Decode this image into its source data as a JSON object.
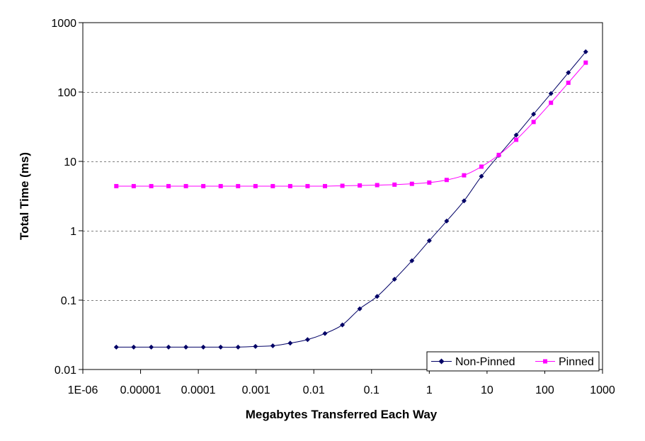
{
  "chart_data": {
    "type": "line",
    "title": "",
    "xlabel": "Megabytes Transferred Each Way",
    "ylabel": "Total Time (ms)",
    "xscale": "log",
    "yscale": "log",
    "xlim": [
      1e-06,
      1000
    ],
    "ylim": [
      0.01,
      1000
    ],
    "x_tick_labels": [
      "1E-06",
      "0.00001",
      "0.0001",
      "0.001",
      "0.01",
      "0.1",
      "1",
      "10",
      "100",
      "1000"
    ],
    "y_tick_labels": [
      "0.01",
      "0.1",
      "1",
      "10",
      "100",
      "1000"
    ],
    "grid": "horizontal dashed",
    "legend_position": "bottom-right",
    "x": [
      3.8e-06,
      7.6e-06,
      1.53e-05,
      3.05e-05,
      6.1e-05,
      0.000122,
      0.000244,
      0.000488,
      0.000977,
      0.00195,
      0.0039,
      0.0078,
      0.0156,
      0.03125,
      0.0625,
      0.125,
      0.25,
      0.5,
      1,
      2,
      4,
      8,
      16,
      32,
      64,
      128,
      256,
      512
    ],
    "series": [
      {
        "name": "Non-Pinned",
        "color": "#000066",
        "marker": "diamond",
        "values": [
          0.021,
          0.021,
          0.021,
          0.021,
          0.021,
          0.021,
          0.021,
          0.021,
          0.0215,
          0.022,
          0.024,
          0.027,
          0.033,
          0.044,
          0.075,
          0.113,
          0.2,
          0.37,
          0.72,
          1.38,
          2.7,
          6.1,
          12.2,
          24,
          48,
          95,
          190,
          380
        ]
      },
      {
        "name": "Pinned",
        "color": "#ff00ff",
        "marker": "square",
        "values": [
          4.4,
          4.4,
          4.4,
          4.4,
          4.4,
          4.4,
          4.4,
          4.4,
          4.4,
          4.4,
          4.4,
          4.4,
          4.4,
          4.45,
          4.5,
          4.55,
          4.62,
          4.75,
          4.95,
          5.4,
          6.3,
          8.4,
          12.4,
          20.5,
          37,
          70,
          136,
          265
        ]
      }
    ]
  }
}
